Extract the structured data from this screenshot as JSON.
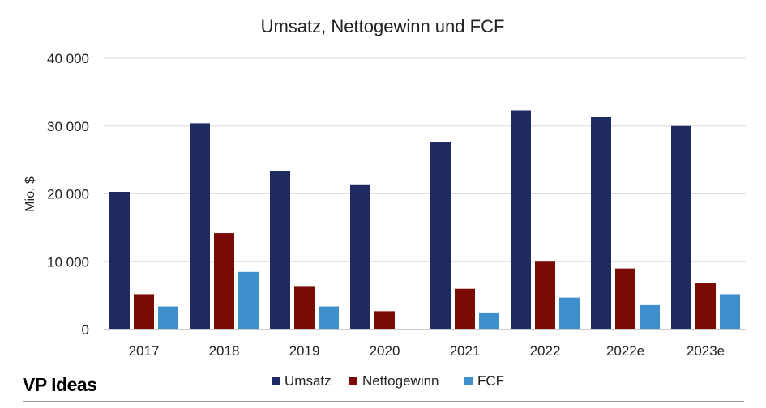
{
  "brand": "VP Ideas",
  "chart_data": {
    "type": "bar",
    "title": "Umsatz, Nettogewinn und FCF",
    "xlabel": "",
    "ylabel": "Mio. $",
    "ylim": [
      0,
      40000
    ],
    "yticks": [
      0,
      10000,
      20000,
      30000,
      40000
    ],
    "ytick_labels": [
      "0",
      "10 000",
      "20 000",
      "30 000",
      "40 000"
    ],
    "grid": true,
    "legend_position": "bottom",
    "categories": [
      "2017",
      "2018",
      "2019",
      "2020",
      "2021",
      "2022",
      "2022e",
      "2023e"
    ],
    "series": [
      {
        "name": "Umsatz",
        "color": "#1f2a63",
        "values": [
          20300,
          30400,
          23400,
          21400,
          27700,
          32300,
          31400,
          30000
        ]
      },
      {
        "name": "Nettogewinn",
        "color": "#7b0a05",
        "values": [
          5200,
          14200,
          6400,
          2700,
          6000,
          10000,
          9000,
          6800
        ]
      },
      {
        "name": "FCF",
        "color": "#3f8fcc",
        "values": [
          3400,
          8500,
          3400,
          0,
          2400,
          4700,
          3600,
          5200
        ]
      }
    ]
  }
}
